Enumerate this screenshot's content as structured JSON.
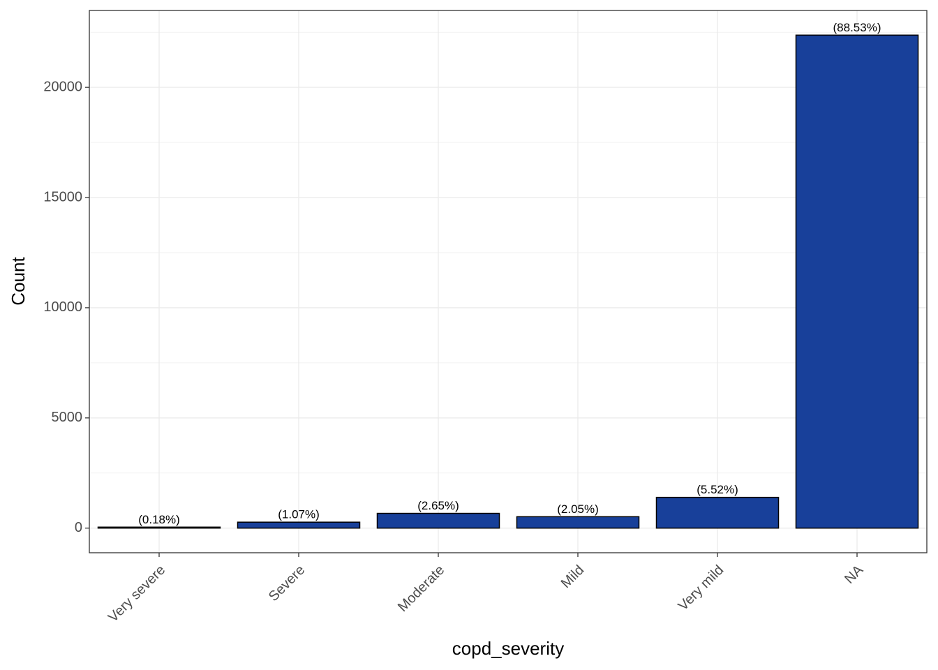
{
  "chart_data": {
    "type": "bar",
    "x_label": "copd_severity",
    "y_label": "Count",
    "categories": [
      "Very severe",
      "Severe",
      "Moderate",
      "Mild",
      "Very mild",
      "NA"
    ],
    "values": [
      45,
      270,
      670,
      518,
      1395,
      22370
    ],
    "annotations": [
      "(0.18%)",
      "(1.07%)",
      "(2.65%)",
      "(2.05%)",
      "(5.52%)",
      "(88.53%)"
    ],
    "color": "#18409a",
    "ylim": [
      -1118,
      23488
    ],
    "yticks": [
      0,
      5000,
      10000,
      15000,
      20000
    ],
    "minor_yticks": [
      2500,
      7500,
      12500,
      17500,
      22500
    ],
    "grid": true
  }
}
